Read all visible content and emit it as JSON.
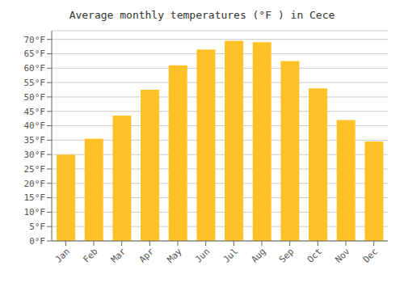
{
  "chart_data": {
    "type": "bar",
    "title": "Average monthly temperatures (°F ) in Cece",
    "categories": [
      "Jan",
      "Feb",
      "Mar",
      "Apr",
      "May",
      "Jun",
      "Jul",
      "Aug",
      "Sep",
      "Oct",
      "Nov",
      "Dec"
    ],
    "values": [
      30,
      35.5,
      43.5,
      52.5,
      61,
      66.5,
      69.5,
      69,
      62.5,
      53,
      42,
      34.5
    ],
    "color": "#FFC125",
    "ylim": [
      0,
      73
    ],
    "yticks": [
      {
        "value": 0,
        "label": "0°F"
      },
      {
        "value": 5,
        "label": "5°F"
      },
      {
        "value": 10,
        "label": "10°F"
      },
      {
        "value": 15,
        "label": "15°F"
      },
      {
        "value": 20,
        "label": "20°F"
      },
      {
        "value": 25,
        "label": "25°F"
      },
      {
        "value": 30,
        "label": "30°F"
      },
      {
        "value": 35,
        "label": "35°F"
      },
      {
        "value": 40,
        "label": "40°F"
      },
      {
        "value": 45,
        "label": "45°F"
      },
      {
        "value": 50,
        "label": "50°F"
      },
      {
        "value": 55,
        "label": "55°F"
      },
      {
        "value": 60,
        "label": "60°F"
      },
      {
        "value": 65,
        "label": "65°F"
      },
      {
        "value": 70,
        "label": "70°F"
      }
    ],
    "grid": true
  }
}
